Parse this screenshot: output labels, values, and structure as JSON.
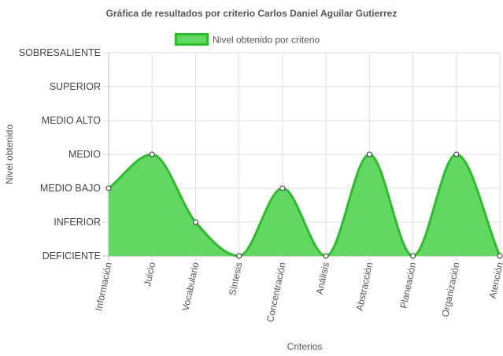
{
  "chart_data": {
    "type": "area",
    "title": "Gráfica de resultados por criterio Carlos Daniel Aguilar Gutierrez",
    "xlabel": "Criterios",
    "ylabel": "Nivel obtenido",
    "levels": [
      "DEFICIENTE",
      "INFERIOR",
      "MEDIO BAJO",
      "MEDIO",
      "MEDIO ALTO",
      "SUPERIOR",
      "SOBRESALIENTE"
    ],
    "categories": [
      "Información",
      "Juicio",
      "Vocabulario",
      "Síntesis",
      "Concentración",
      "Análisis",
      "Abstracción",
      "Planeación",
      "Organización",
      "Atención"
    ],
    "series": [
      {
        "name": "Nivel obtenido por criterio",
        "values": [
          "MEDIO BAJO",
          "MEDIO",
          "INFERIOR",
          "DEFICIENTE",
          "MEDIO BAJO",
          "DEFICIENTE",
          "MEDIO",
          "DEFICIENTE",
          "MEDIO",
          "DEFICIENTE"
        ]
      }
    ],
    "legend_position": "top",
    "grid": true,
    "colors": {
      "fill": "#62d862",
      "line": "#2bbd2b",
      "point_fill": "#ffffff",
      "point_stroke": "#333333",
      "grid": "#dddddd"
    }
  }
}
